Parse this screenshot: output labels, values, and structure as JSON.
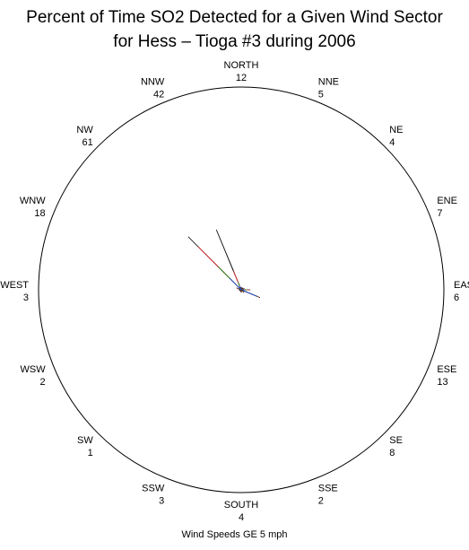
{
  "chart_data": {
    "type": "wind-rose",
    "title": "Percent of Time SO2 Detected for a Given Wind Sector",
    "subtitle": "for Hess  –  Tioga #3 during 2006",
    "footer": "Wind Speeds GE 5 mph",
    "sectors": [
      {
        "name": "NORTH",
        "count": "12"
      },
      {
        "name": "NNE",
        "count": "5"
      },
      {
        "name": "NE",
        "count": "4"
      },
      {
        "name": "ENE",
        "count": "7"
      },
      {
        "name": "EAST",
        "count": "6"
      },
      {
        "name": "ESE",
        "count": "13"
      },
      {
        "name": "SE",
        "count": "8"
      },
      {
        "name": "SSE",
        "count": "2"
      },
      {
        "name": "SOUTH",
        "count": "4"
      },
      {
        "name": "SSW",
        "count": "3"
      },
      {
        "name": "SW",
        "count": "1"
      },
      {
        "name": "WSW",
        "count": "2"
      },
      {
        "name": "WEST",
        "count": "3"
      },
      {
        "name": "WNW",
        "count": "18"
      },
      {
        "name": "NW",
        "count": "61"
      },
      {
        "name": "NNW",
        "count": "42"
      }
    ],
    "radial_max": 100,
    "bands_percent": {
      "NORTH": [
        0.4,
        0.3,
        0.3,
        0.3
      ],
      "NNE": [
        0.3,
        0.3,
        0.3,
        0.2
      ],
      "NE": [
        0.4,
        0.3,
        0.3,
        0.3
      ],
      "ENE": [
        0.5,
        0.4,
        0.4,
        0.4
      ],
      "EAST": [
        1.5,
        1.5,
        1.0,
        0.5
      ],
      "ESE": [
        8.5,
        0.5,
        0.5,
        0.5
      ],
      "SE": [
        0.5,
        0.5,
        0.5,
        0.5
      ],
      "SSE": [
        0.3,
        0.2,
        0.2,
        0.2
      ],
      "SOUTH": [
        0.4,
        0.3,
        0.3,
        0.3
      ],
      "SSW": [
        0.3,
        0.3,
        0.3,
        0.2
      ],
      "SW": [
        0.2,
        0.2,
        0.2,
        0.2
      ],
      "WSW": [
        0.3,
        0.2,
        0.2,
        0.2
      ],
      "WEST": [
        0.4,
        0.3,
        0.3,
        0.3
      ],
      "WNW": [
        1.0,
        0.5,
        0.5,
        0.5
      ],
      "NW": [
        8.0,
        8.0,
        14.0,
        7.0
      ],
      "NNW": [
        2.0,
        2.0,
        6.0,
        22.0
      ]
    },
    "band_colors": [
      "#1f3fd8",
      "#108a10",
      "#e02020",
      "#000000"
    ]
  }
}
